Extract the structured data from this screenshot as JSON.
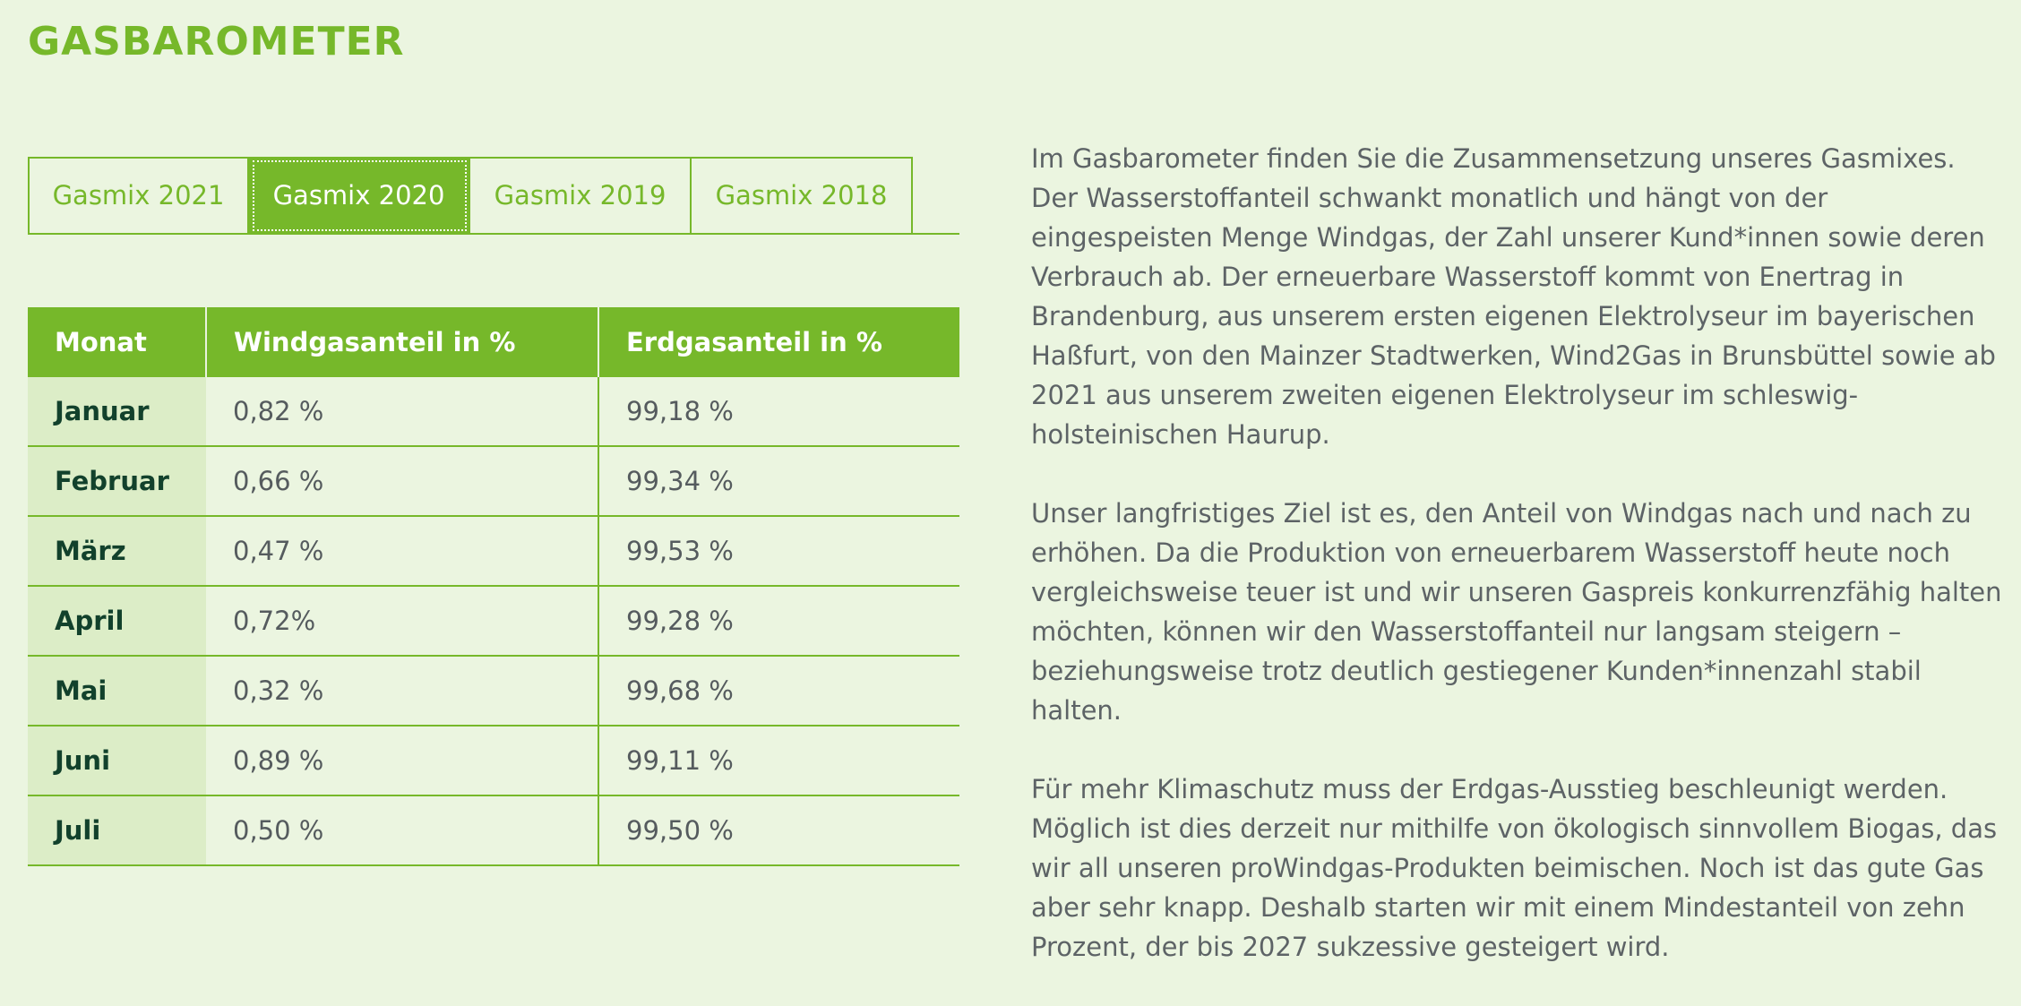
{
  "page": {
    "title": "GASBAROMETER"
  },
  "tabs": [
    {
      "label": "Gasmix 2021",
      "active": false
    },
    {
      "label": "Gasmix 2020",
      "active": true
    },
    {
      "label": "Gasmix 2019",
      "active": false
    },
    {
      "label": "Gasmix 2018",
      "active": false
    }
  ],
  "table": {
    "headers": [
      "Monat",
      "Windgasanteil in %",
      "Erdgasanteil in %"
    ],
    "rows": [
      {
        "month": "Januar",
        "wind": "0,82 %",
        "erdgas": "99,18 %"
      },
      {
        "month": "Februar",
        "wind": "0,66 %",
        "erdgas": "99,34 %"
      },
      {
        "month": "März",
        "wind": "0,47 %",
        "erdgas": "99,53 %"
      },
      {
        "month": "April",
        "wind": "0,72%",
        "erdgas": "99,28 %"
      },
      {
        "month": "Mai",
        "wind": "0,32 %",
        "erdgas": "99,68 %"
      },
      {
        "month": "Juni",
        "wind": "0,89 %",
        "erdgas": "99,11 %"
      },
      {
        "month": "Juli",
        "wind": "0,50 %",
        "erdgas": "99,50 %"
      }
    ]
  },
  "text": {
    "paragraphs": [
      "Im Gasbarometer finden Sie die Zusammensetzung unseres Gasmixes. Der Wasserstoffanteil schwankt monatlich und hängt von der eingespeisten Menge Windgas, der Zahl unserer Kund*innen sowie deren Verbrauch ab. Der erneuerbare Wasserstoff kommt von Enertrag in Brandenburg, aus unserem ersten eigenen Elektrolyseur im bayerischen Haßfurt, von den Mainzer Stadtwerken, Wind2Gas in Brunsbüttel sowie ab 2021 aus unserem zweiten eigenen Elektrolyseur im schleswig-holsteinischen Haurup.",
      "Unser langfristiges Ziel ist es, den Anteil von Windgas nach und nach zu erhöhen. Da die Produktion von erneuerbarem Wasserstoff heute noch vergleichsweise teuer ist und wir unseren Gaspreis konkurrenzfähig halten möchten, können wir den Wasserstoffanteil nur langsam steigern – beziehungsweise trotz deutlich gestiegener Kunden*innenzahl stabil halten.",
      "Für mehr Klimaschutz muss der Erdgas-Ausstieg beschleunigt werden. Möglich ist dies derzeit nur mithilfe von ökologisch sinnvollem Biogas, das wir all unseren proWindgas-Produkten beimischen. Noch ist das gute Gas aber sehr knapp. Deshalb starten wir mit einem Mindestanteil von zehn Prozent, der bis 2027 sukzessive gesteigert wird."
    ]
  },
  "colors": {
    "accent": "#76b82a",
    "background": "#ebf5e0",
    "month_cell": "#dcedc7",
    "month_text": "#12412c"
  }
}
